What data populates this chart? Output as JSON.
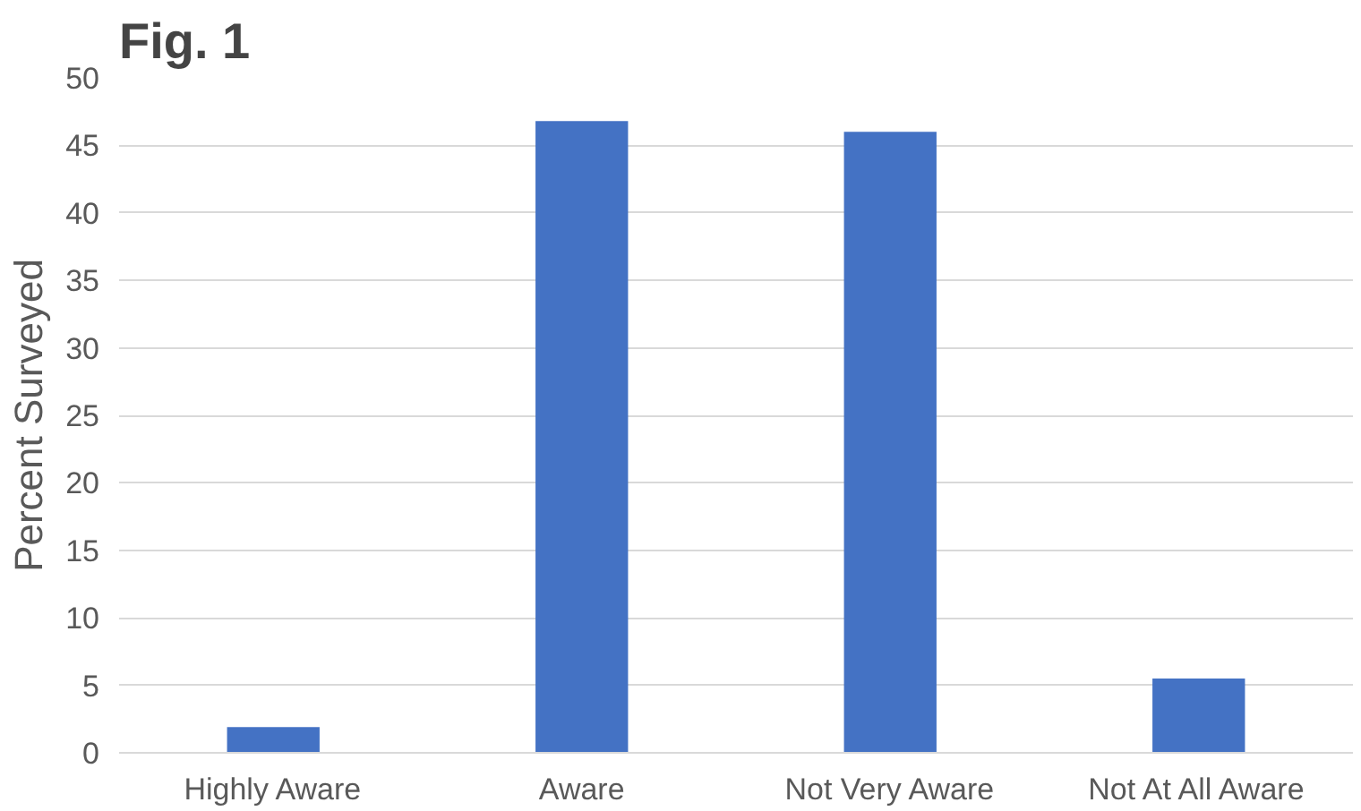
{
  "chart_data": {
    "type": "bar",
    "title": "Fig. 1",
    "ylabel": "Percent Surveyed",
    "categories": [
      "Highly Aware",
      "Aware",
      "Not Very Aware",
      "Not At All Aware"
    ],
    "values": [
      1.9,
      46.8,
      46.0,
      5.5
    ],
    "color": "#4472c4",
    "ylim": [
      0,
      50
    ],
    "yticks": [
      0,
      5,
      10,
      15,
      20,
      25,
      30,
      35,
      40,
      45,
      50
    ],
    "grid": "y"
  }
}
